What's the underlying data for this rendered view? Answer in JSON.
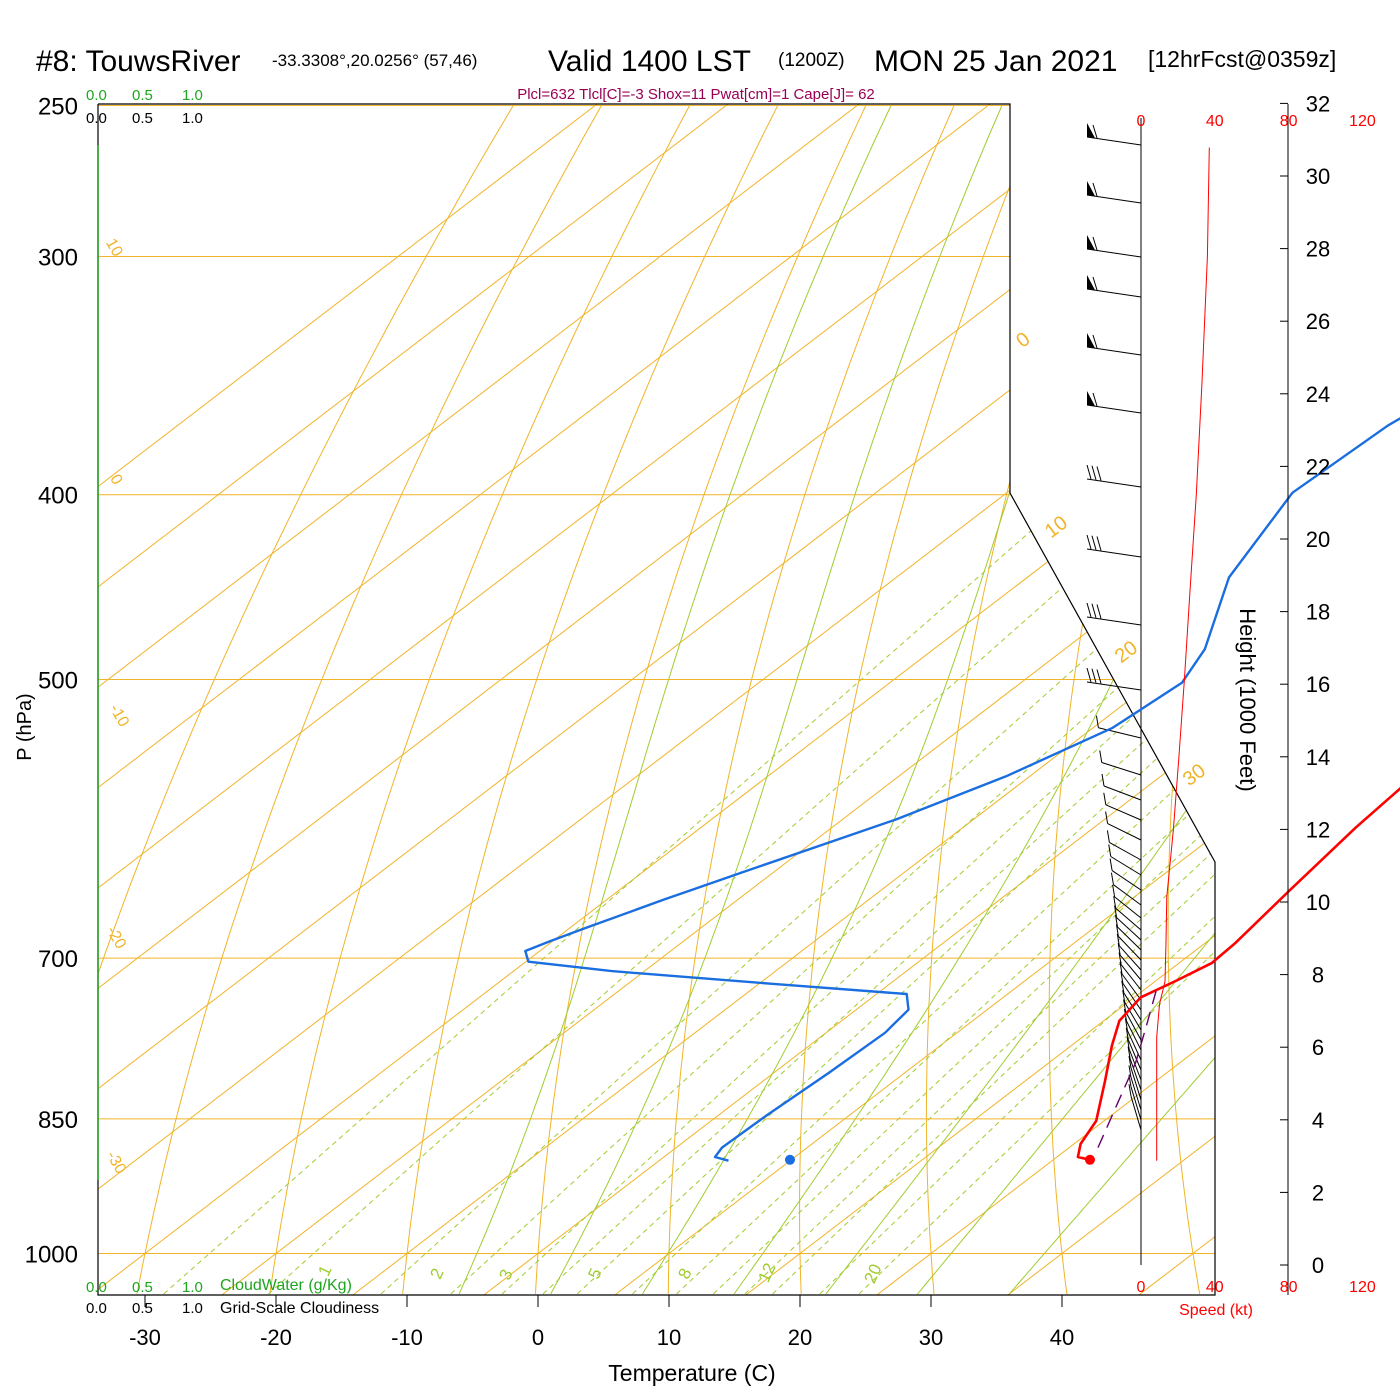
{
  "header": {
    "station": "#8: TouwsRiver",
    "coords": "-33.3308°,20.0256° (57,46)",
    "valid": "Valid 1400 LST",
    "zulu": "(1200Z)",
    "date": "MON 25 Jan 2021",
    "forecast": "[12hrFcst@0359z]"
  },
  "indices": "Plcl=632 Tlcl[C]=-3 Shox=11 Pwat[cm]=1 Cape[J]= 62",
  "top_scales": {
    "green": [
      "0.0",
      "0.5",
      "1.0"
    ],
    "black": [
      "0.0",
      "0.5",
      "1.0"
    ]
  },
  "bottom_scales": {
    "green": [
      "0.0",
      "0.5",
      "1.0"
    ],
    "green_label": "CloudWater (g/Kg)",
    "black": [
      "0.0",
      "0.5",
      "1.0"
    ],
    "black_label": "Grid-Scale Cloudiness"
  },
  "speed_scale": {
    "ticks": [
      "0",
      "40",
      "80",
      "120"
    ],
    "label": "Speed (kt)"
  },
  "colors": {
    "temperature": "#ff0000",
    "dewpoint": "#1a6ee0",
    "isotherm": "#f0b428",
    "mixing_ratio": "#a0cc30",
    "parcel": "#660066",
    "speed": "#ff0000"
  },
  "chart_data": {
    "type": "line",
    "title": "#8: TouwsRiver Valid 1400 LST (1200Z) MON 25 Jan 2021",
    "xlabel": "Temperature (C)",
    "ylabel": "P (hPa)",
    "y2label": "Height (1000 Feet)",
    "x_ticks": [
      "-30",
      "-20",
      "-10",
      "0",
      "10",
      "20",
      "30",
      "40"
    ],
    "p_ticks": [
      "250",
      "300",
      "400",
      "500",
      "700",
      "850",
      "1000"
    ],
    "height_ticks": [
      "0",
      "2",
      "4",
      "6",
      "8",
      "10",
      "12",
      "14",
      "16",
      "18",
      "20",
      "22",
      "24",
      "26",
      "28",
      "30",
      "32"
    ],
    "isotherm_labels": [
      "0",
      "10",
      "20",
      "30"
    ],
    "left_isotherm_labels": [
      "10",
      "0",
      "-10",
      "-20",
      "-30"
    ],
    "mixing_ratio_labels": [
      "1",
      "2",
      "3",
      "5",
      "8",
      "12",
      "20"
    ],
    "series": [
      {
        "name": "Temperature",
        "points": [
          [
            6,
            263
          ],
          [
            9.6,
            312
          ],
          [
            11.8,
            358
          ],
          [
            13.4,
            400
          ],
          [
            16,
            452
          ],
          [
            17.9,
            500
          ],
          [
            19.1,
            549
          ],
          [
            20,
            598
          ],
          [
            21.2,
            645
          ],
          [
            22.3,
            687
          ],
          [
            22.5,
            704
          ],
          [
            21.5,
            720
          ],
          [
            20.5,
            734
          ],
          [
            21.2,
            755
          ],
          [
            23.1,
            778
          ],
          [
            26.1,
            812
          ],
          [
            29.4,
            852
          ],
          [
            30.5,
            876
          ],
          [
            31.6,
            890
          ],
          [
            32.8,
            893
          ]
        ]
      },
      {
        "name": "Dewpoint",
        "points": [
          [
            -1.9,
            263
          ],
          [
            -5,
            281
          ],
          [
            -9.6,
            304
          ],
          [
            -13.2,
            323
          ],
          [
            -15.9,
            344
          ],
          [
            -17.6,
            368
          ],
          [
            -18.2,
            399
          ],
          [
            -14.6,
            442
          ],
          [
            -9.3,
            482
          ],
          [
            -7.7,
            502
          ],
          [
            -8.5,
            530
          ],
          [
            -11.8,
            562
          ],
          [
            -15.9,
            592
          ],
          [
            -22.2,
            630
          ],
          [
            -25.6,
            652
          ],
          [
            -28.8,
            675
          ],
          [
            -30.2,
            686
          ],
          [
            -31.1,
            694
          ],
          [
            -29.8,
            703
          ],
          [
            -22.5,
            711
          ],
          [
            -9,
            722
          ],
          [
            2.3,
            731
          ],
          [
            4,
            745
          ],
          [
            4.5,
            766
          ],
          [
            4.2,
            804
          ],
          [
            3.7,
            846
          ],
          [
            3.5,
            880
          ],
          [
            3.9,
            890
          ],
          [
            5.3,
            894
          ]
        ]
      },
      {
        "name": "Parcel",
        "points": [
          [
            21,
            728
          ],
          [
            23.8,
            760
          ],
          [
            26.6,
            794
          ],
          [
            29.4,
            836
          ],
          [
            32.2,
            880
          ]
        ]
      },
      {
        "name": "Wind Speed",
        "points": [
          [
            37,
            263
          ],
          [
            36,
            300
          ],
          [
            33,
            350
          ],
          [
            30,
            400
          ],
          [
            26.5,
            450
          ],
          [
            23.5,
            500
          ],
          [
            20.5,
            550
          ],
          [
            17.5,
            600
          ],
          [
            14,
            650
          ],
          [
            13.5,
            690
          ],
          [
            13,
            720
          ],
          [
            10,
            740
          ],
          [
            8.5,
            770
          ],
          [
            8.5,
            850
          ],
          [
            8.5,
            894
          ]
        ]
      },
      {
        "name": "Surface Temperature",
        "points": [
          [
            32.8,
            893
          ]
        ]
      },
      {
        "name": "Surface Dewpoint",
        "points": [
          [
            9.9,
            893
          ]
        ]
      }
    ],
    "xlim": [
      -34,
      43
    ],
    "ylim": [
      1050,
      250
    ],
    "y_scale": "log",
    "grid": true
  }
}
